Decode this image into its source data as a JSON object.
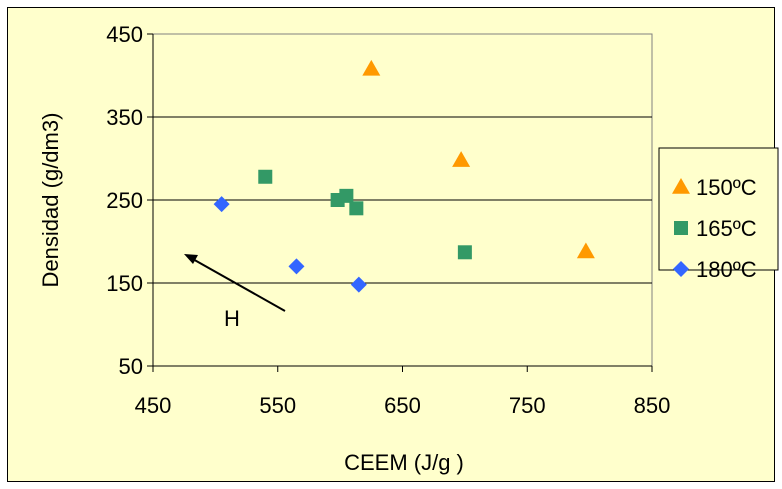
{
  "chart_data": {
    "type": "scatter",
    "title": "",
    "xlabel": "CEEM (J/g )",
    "ylabel": "Densidad (g/dm3)",
    "xlim": [
      450,
      850
    ],
    "ylim": [
      50,
      450
    ],
    "x_ticks": [
      "450",
      "550",
      "650",
      "750",
      "850"
    ],
    "y_ticks": [
      "450",
      "350",
      "250",
      "150",
      "50"
    ],
    "grid": "horizontal",
    "legend_position": "right",
    "annotation": "H",
    "series": [
      {
        "name": "150ºC",
        "marker": "triangle",
        "color": "#ff9900",
        "points": [
          [
            625,
            408
          ],
          [
            697,
            298
          ],
          [
            797,
            188
          ]
        ]
      },
      {
        "name": "165ºC",
        "marker": "square",
        "color": "#339966",
        "points": [
          [
            540,
            278
          ],
          [
            598,
            250
          ],
          [
            605,
            255
          ],
          [
            613,
            240
          ],
          [
            700,
            187
          ]
        ]
      },
      {
        "name": "180ºC",
        "marker": "diamond",
        "color": "#3366ff",
        "points": [
          [
            505,
            245
          ],
          [
            565,
            170
          ],
          [
            615,
            148
          ]
        ]
      }
    ]
  }
}
